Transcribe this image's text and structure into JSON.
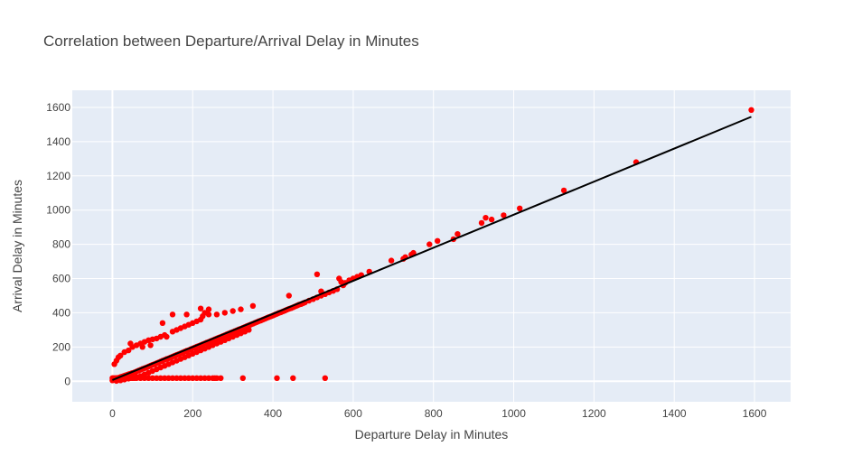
{
  "chart_data": {
    "type": "scatter",
    "title": "Correlation between Departure/Arrival Delay in Minutes",
    "xlabel": "Departure Delay in Minutes",
    "ylabel": "Arrival Delay in Minutes",
    "xlim": [
      -100,
      1690
    ],
    "ylim": [
      -120,
      1700
    ],
    "xticks": [
      0,
      200,
      400,
      600,
      800,
      1000,
      1200,
      1400,
      1600
    ],
    "yticks": [
      0,
      200,
      400,
      600,
      800,
      1000,
      1200,
      1400,
      1600
    ],
    "xtick_labels": [
      "0",
      "200",
      "400",
      "600",
      "800",
      "1000",
      "1200",
      "1400",
      "1600"
    ],
    "ytick_labels": [
      "0",
      "200",
      "400",
      "600",
      "800",
      "1000",
      "1200",
      "1400",
      "1600"
    ],
    "grid": true,
    "colors": {
      "points": "#ff0000",
      "fit_line": "#000000",
      "plot_bg": "#e5ecf6",
      "grid": "#ffffff"
    },
    "series": [
      {
        "kind": "points",
        "x": [
          0,
          3,
          5,
          8,
          10,
          12,
          15,
          18,
          20,
          22,
          25,
          28,
          30,
          32,
          35,
          38,
          40,
          42,
          45,
          48,
          50,
          55,
          60,
          65,
          70,
          75,
          80,
          85,
          90,
          95,
          100,
          105,
          110,
          115,
          120,
          125,
          130,
          135,
          140,
          145,
          150,
          155,
          160,
          165,
          170,
          175,
          180,
          185,
          190,
          195,
          200,
          205,
          210,
          215,
          220,
          225,
          230,
          235,
          240,
          245,
          250,
          255,
          260,
          265,
          270,
          275,
          280,
          285,
          290,
          295,
          300,
          305,
          310,
          315,
          320,
          325,
          330,
          335,
          340,
          345,
          350,
          355,
          360,
          365,
          370,
          375,
          380,
          385,
          390,
          395,
          400,
          405,
          410,
          415,
          420,
          425,
          430,
          435,
          440,
          445,
          450,
          455,
          460,
          465,
          470,
          475,
          480,
          490,
          500,
          510,
          520,
          530,
          540,
          550,
          560,
          565,
          570,
          575,
          580,
          590,
          600,
          610,
          620,
          640,
          695,
          725,
          730,
          745,
          750,
          790,
          810,
          850,
          860,
          920,
          930,
          945,
          975,
          1015,
          1125,
          1305,
          1592,
          0,
          2,
          5,
          8,
          10,
          12,
          15,
          20,
          25,
          30,
          35,
          40,
          45,
          50,
          55,
          60,
          70,
          80,
          90,
          100,
          110,
          120,
          130,
          140,
          150,
          160,
          170,
          180,
          190,
          200,
          210,
          220,
          230,
          240,
          250,
          255,
          260,
          270,
          325,
          410,
          450,
          530,
          5,
          10,
          15,
          20,
          30,
          40,
          45,
          50,
          60,
          70,
          75,
          80,
          90,
          95,
          100,
          110,
          120,
          130,
          135,
          150,
          160,
          170,
          180,
          190,
          200,
          210,
          220,
          225,
          230,
          240,
          260,
          280,
          300,
          320,
          350,
          10,
          20,
          30,
          40,
          50,
          60,
          70,
          80,
          90,
          100,
          110,
          120,
          130,
          140,
          150,
          160,
          170,
          180,
          190,
          200,
          210,
          220,
          230,
          240,
          250,
          260,
          270,
          280,
          290,
          300,
          310,
          320,
          330,
          340,
          510,
          240,
          220,
          150,
          125,
          185,
          440,
          520
        ],
        "y": [
          5,
          8,
          10,
          12,
          15,
          18,
          20,
          22,
          24,
          26,
          28,
          30,
          32,
          34,
          36,
          38,
          40,
          42,
          44,
          46,
          48,
          52,
          57,
          62,
          67,
          72,
          76,
          81,
          86,
          91,
          96,
          100,
          105,
          110,
          115,
          120,
          125,
          130,
          134,
          139,
          144,
          149,
          154,
          158,
          163,
          168,
          173,
          178,
          182,
          187,
          192,
          197,
          202,
          206,
          211,
          216,
          221,
          226,
          230,
          235,
          240,
          245,
          250,
          255,
          259,
          264,
          269,
          274,
          279,
          283,
          288,
          293,
          298,
          303,
          307,
          312,
          317,
          322,
          327,
          331,
          336,
          341,
          346,
          351,
          355,
          360,
          365,
          370,
          375,
          379,
          384,
          389,
          394,
          399,
          403,
          408,
          413,
          418,
          423,
          427,
          432,
          437,
          442,
          447,
          451,
          456,
          461,
          471,
          480,
          490,
          500,
          509,
          519,
          528,
          538,
          600,
          580,
          560,
          575,
          590,
          600,
          610,
          620,
          640,
          705,
          715,
          725,
          740,
          750,
          800,
          820,
          830,
          860,
          925,
          955,
          945,
          970,
          1010,
          1115,
          1280,
          1585,
          18,
          18,
          18,
          18,
          18,
          18,
          18,
          18,
          18,
          18,
          18,
          18,
          18,
          18,
          18,
          18,
          18,
          18,
          18,
          18,
          18,
          18,
          18,
          18,
          18,
          18,
          18,
          18,
          18,
          18,
          18,
          18,
          18,
          18,
          18,
          18,
          18,
          18,
          18,
          18,
          18,
          18,
          100,
          120,
          140,
          150,
          170,
          180,
          220,
          200,
          210,
          220,
          200,
          230,
          240,
          210,
          245,
          250,
          260,
          270,
          260,
          290,
          300,
          310,
          320,
          330,
          340,
          350,
          360,
          380,
          400,
          390,
          390,
          400,
          410,
          420,
          440,
          2,
          5,
          10,
          15,
          20,
          25,
          30,
          40,
          50,
          60,
          70,
          80,
          90,
          100,
          110,
          120,
          130,
          140,
          150,
          160,
          170,
          180,
          190,
          200,
          210,
          220,
          230,
          240,
          250,
          260,
          270,
          280,
          290,
          300,
          625,
          420,
          425,
          390,
          340,
          390,
          500,
          525
        ]
      },
      {
        "kind": "fit_line",
        "x": [
          0,
          1592
        ],
        "y": [
          7,
          1545
        ]
      }
    ]
  }
}
